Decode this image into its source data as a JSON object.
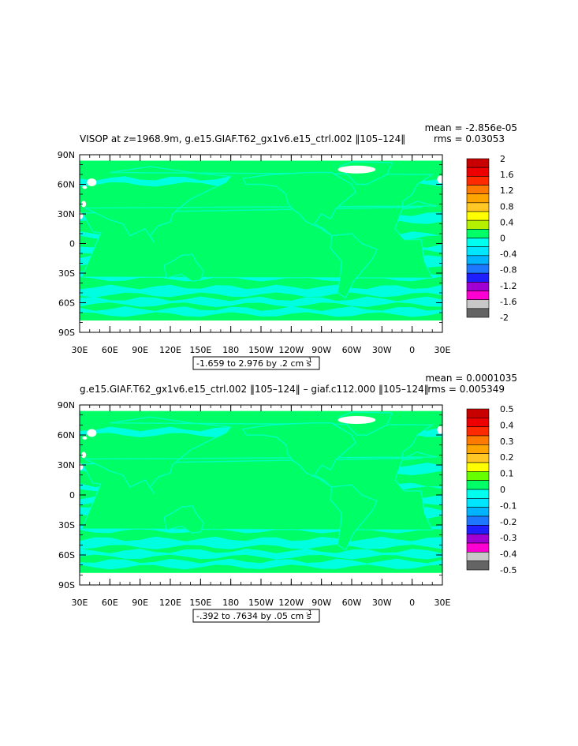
{
  "colors": {
    "ocean_main": "#00ff66",
    "ocean_cyan": "#00ffee",
    "land_mask": "#ffffff",
    "frame": "#000000"
  },
  "ticks": {
    "lat": [
      "90N",
      "60N",
      "30N",
      "0",
      "30S",
      "60S",
      "90S"
    ],
    "lon": [
      "30E",
      "60E",
      "90E",
      "120E",
      "150E",
      "180",
      "150W",
      "120W",
      "90W",
      "60W",
      "30W",
      "0",
      "30E"
    ]
  },
  "chart_data": [
    {
      "type": "heatmap",
      "title": "VISOP at z=1968.9m, g.e15.GIAF.T62_gx1v6.e15_ctrl.002 ‖105–124‖",
      "stats": {
        "mean": "mean = -2.856e-05",
        "rms": "rms = 0.03053"
      },
      "range_label": "-1.659 to 2.976 by .2 cm s",
      "units_sup": "-1",
      "xlim": [
        30,
        390
      ],
      "ylim": [
        -90,
        90
      ],
      "grid": false,
      "legend_placement": "right",
      "colorbar": {
        "labels": [
          "2",
          "1.6",
          "1.2",
          "0.8",
          "0.4",
          "0",
          "-0.4",
          "-0.8",
          "-1.2",
          "-1.6",
          "-2"
        ],
        "colors": [
          "#c80000",
          "#ee0000",
          "#ff2a00",
          "#ff7a00",
          "#ffa500",
          "#ffc825",
          "#ffff00",
          "#b4f000",
          "#00ff66",
          "#00ffee",
          "#00e6ff",
          "#00b4ff",
          "#1e78ff",
          "#1e1eff",
          "#a000d2",
          "#ff00d2",
          "#c8c8c8",
          "#646464"
        ]
      }
    },
    {
      "type": "heatmap",
      "title": "g.e15.GIAF.T62_gx1v6.e15_ctrl.002 ‖105–124‖ – giaf.c112.000 ‖105–124‖",
      "stats": {
        "mean": "mean = 0.0001035",
        "rms": "rms = 0.005349"
      },
      "range_label": "-.392 to .7634 by .05 cm s",
      "units_sup": "-1",
      "xlim": [
        30,
        390
      ],
      "ylim": [
        -90,
        90
      ],
      "grid": false,
      "legend_placement": "right",
      "colorbar": {
        "labels": [
          "0.5",
          "0.4",
          "0.3",
          "0.2",
          "0.1",
          "0",
          "-0.1",
          "-0.2",
          "-0.3",
          "-0.4",
          "-0.5"
        ],
        "colors": [
          "#c80000",
          "#ee0000",
          "#ff2a00",
          "#ff7a00",
          "#ffa500",
          "#ffc825",
          "#ffff00",
          "#66ff00",
          "#00ff66",
          "#00ffee",
          "#00e6ff",
          "#00b4ff",
          "#1e78ff",
          "#1e1eff",
          "#a000d2",
          "#ff00d2",
          "#c8c8c8",
          "#646464"
        ]
      }
    }
  ]
}
